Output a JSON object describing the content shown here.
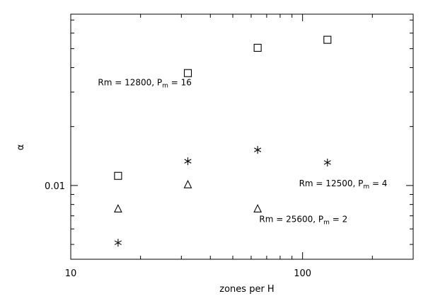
{
  "chart_data": {
    "type": "scatter",
    "xlabel": "zones per H",
    "ylabel": "α",
    "xscale": "log",
    "yscale": "log",
    "xlim": [
      10,
      300
    ],
    "ylim": [
      0.0042,
      0.075
    ],
    "grid": false,
    "x_tick_labels": [
      {
        "value": 10,
        "label": "10"
      },
      {
        "value": 100,
        "label": "100"
      }
    ],
    "y_tick_labels": [
      {
        "value": 0.01,
        "label": "0.01"
      }
    ],
    "series": [
      {
        "marker": "square",
        "points": [
          {
            "x": 16,
            "y": 0.0112
          },
          {
            "x": 32,
            "y": 0.0375
          },
          {
            "x": 64,
            "y": 0.0505
          },
          {
            "x": 128,
            "y": 0.0555
          }
        ]
      },
      {
        "marker": "triangle",
        "points": [
          {
            "x": 16,
            "y": 0.0076
          },
          {
            "x": 32,
            "y": 0.0101
          },
          {
            "x": 64,
            "y": 0.0076
          }
        ]
      },
      {
        "marker": "asterisk",
        "points": [
          {
            "x": 16,
            "y": 0.0051
          },
          {
            "x": 32,
            "y": 0.0133
          },
          {
            "x": 64,
            "y": 0.0152
          },
          {
            "x": 128,
            "y": 0.0131
          }
        ]
      }
    ],
    "annotations": [
      {
        "id": "a1",
        "label": "Rm = 12800, P",
        "sub": "m",
        "suffix": " = 16",
        "x": 13.1,
        "y": 0.0325
      },
      {
        "id": "a2",
        "label": "Rm = 12500, P",
        "sub": "m",
        "suffix": " = 4",
        "x": 96.5,
        "y": 0.0099
      },
      {
        "id": "a3",
        "label": "Rm = 25600, P",
        "sub": "m",
        "suffix": " = 2",
        "x": 65,
        "y": 0.0065
      }
    ]
  }
}
